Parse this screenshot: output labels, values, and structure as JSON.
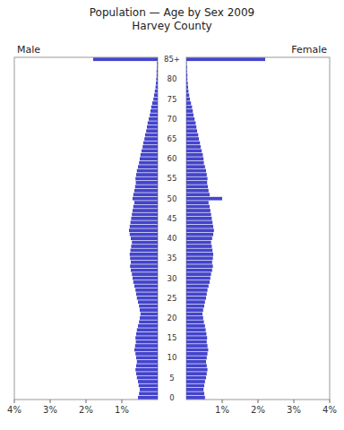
{
  "chart_data": {
    "type": "bar",
    "orientation": "horizontal",
    "title": "Population — Age by Sex 2009\nHarvey County",
    "categories": [
      "0",
      null,
      null,
      null,
      null,
      "5",
      null,
      null,
      null,
      null,
      "10",
      null,
      null,
      null,
      null,
      "15",
      null,
      null,
      null,
      null,
      "20",
      null,
      null,
      null,
      null,
      "25",
      null,
      null,
      null,
      null,
      "30",
      null,
      null,
      null,
      null,
      "35",
      null,
      null,
      null,
      null,
      "40",
      null,
      null,
      null,
      null,
      "45",
      null,
      null,
      null,
      null,
      "50",
      null,
      null,
      null,
      null,
      "55",
      null,
      null,
      null,
      null,
      "60",
      null,
      null,
      null,
      null,
      "65",
      null,
      null,
      null,
      null,
      "70",
      null,
      null,
      null,
      null,
      "75",
      null,
      null,
      null,
      null,
      "80",
      null,
      null,
      null,
      null,
      "85+"
    ],
    "series": [
      {
        "name": "Male",
        "color": "#4444cc",
        "values": [
          0.55,
          0.52,
          0.5,
          0.53,
          0.55,
          0.58,
          0.6,
          0.62,
          0.6,
          0.58,
          0.6,
          0.62,
          0.65,
          0.63,
          0.61,
          0.62,
          0.6,
          0.58,
          0.55,
          0.52,
          0.5,
          0.48,
          0.5,
          0.52,
          0.55,
          0.58,
          0.6,
          0.62,
          0.65,
          0.68,
          0.7,
          0.72,
          0.75,
          0.77,
          0.75,
          0.77,
          0.78,
          0.76,
          0.74,
          0.72,
          0.75,
          0.78,
          0.8,
          0.78,
          0.76,
          0.74,
          0.72,
          0.7,
          0.68,
          0.65,
          0.7,
          0.68,
          0.65,
          0.63,
          0.61,
          0.62,
          0.6,
          0.58,
          0.55,
          0.52,
          0.5,
          0.48,
          0.45,
          0.42,
          0.4,
          0.37,
          0.35,
          0.32,
          0.3,
          0.28,
          0.25,
          0.22,
          0.2,
          0.18,
          0.15,
          0.12,
          0.1,
          0.08,
          0.06,
          0.05,
          0.04,
          0.03,
          0.03,
          0.02,
          0.02,
          1.8
        ]
      },
      {
        "name": "Female",
        "color": "#4444cc",
        "values": [
          0.52,
          0.5,
          0.48,
          0.5,
          0.52,
          0.55,
          0.57,
          0.59,
          0.57,
          0.55,
          0.57,
          0.59,
          0.61,
          0.59,
          0.57,
          0.58,
          0.56,
          0.54,
          0.52,
          0.49,
          0.47,
          0.45,
          0.47,
          0.5,
          0.52,
          0.55,
          0.57,
          0.59,
          0.62,
          0.65,
          0.67,
          0.69,
          0.72,
          0.74,
          0.72,
          0.74,
          0.75,
          0.73,
          0.71,
          0.69,
          0.72,
          0.75,
          0.77,
          0.75,
          0.73,
          0.71,
          0.69,
          0.67,
          0.65,
          0.62,
          1.0,
          0.65,
          0.62,
          0.6,
          0.58,
          0.59,
          0.57,
          0.55,
          0.52,
          0.49,
          0.48,
          0.46,
          0.43,
          0.4,
          0.38,
          0.35,
          0.33,
          0.3,
          0.28,
          0.26,
          0.23,
          0.2,
          0.18,
          0.16,
          0.13,
          0.1,
          0.08,
          0.06,
          0.05,
          0.04,
          0.03,
          0.03,
          0.02,
          0.02,
          0.01,
          2.2
        ]
      }
    ],
    "xlim": [
      0,
      4
    ],
    "xticks": [
      {
        "value": 1,
        "label": "1%"
      },
      {
        "value": 2,
        "label": "2%"
      },
      {
        "value": 3,
        "label": "3%"
      },
      {
        "value": 4,
        "label": "4%"
      }
    ]
  }
}
